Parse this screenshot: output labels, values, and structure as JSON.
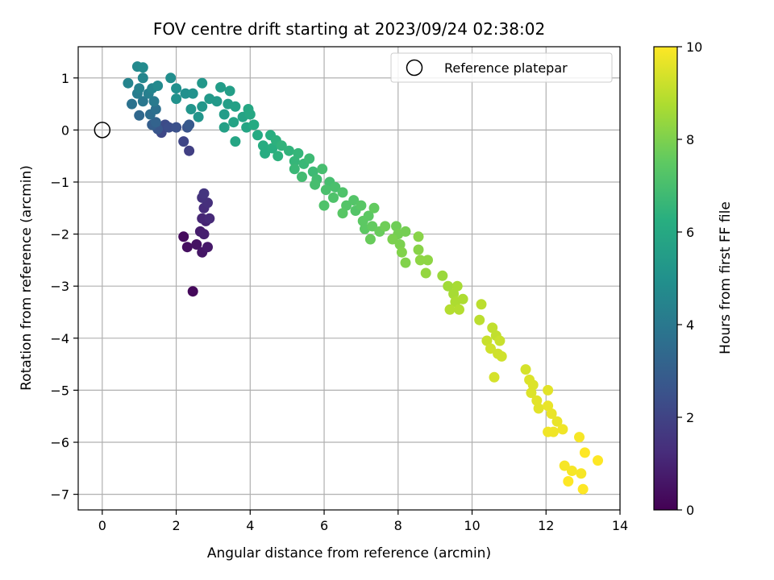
{
  "chart_data": {
    "type": "scatter",
    "title": "FOV centre drift starting at 2023/09/24 02:38:02",
    "xlabel": "Angular distance from reference (arcmin)",
    "ylabel": "Rotation from reference (arcmin)",
    "xlim": [
      -0.65,
      14.0
    ],
    "ylim": [
      -7.3,
      1.6
    ],
    "xticks": [
      0,
      2,
      4,
      6,
      8,
      10,
      12,
      14
    ],
    "yticks": [
      1,
      0,
      -1,
      -2,
      -3,
      -4,
      -5,
      -6,
      -7
    ],
    "grid": true,
    "colormap": "viridis",
    "colorbar": {
      "label": "Hours from first FF file",
      "range": [
        0,
        10
      ],
      "ticks": [
        0,
        2,
        4,
        6,
        8,
        10
      ]
    },
    "legend": {
      "placement": "top-right",
      "entries": [
        {
          "label": "Reference platepar",
          "marker": "open-circle"
        }
      ]
    },
    "reference_point": {
      "x": 0,
      "y": 0
    },
    "points": [
      {
        "x": 2.45,
        "y": -3.1,
        "h": 0.2
      },
      {
        "x": 2.2,
        "y": -2.05,
        "h": 0.3
      },
      {
        "x": 2.3,
        "y": -2.25,
        "h": 0.4
      },
      {
        "x": 2.55,
        "y": -2.2,
        "h": 0.5
      },
      {
        "x": 2.7,
        "y": -2.35,
        "h": 0.6
      },
      {
        "x": 2.85,
        "y": -2.25,
        "h": 0.7
      },
      {
        "x": 2.65,
        "y": -1.95,
        "h": 0.8
      },
      {
        "x": 2.75,
        "y": -2.0,
        "h": 0.9
      },
      {
        "x": 2.8,
        "y": -1.75,
        "h": 1.0
      },
      {
        "x": 2.7,
        "y": -1.7,
        "h": 1.1
      },
      {
        "x": 2.9,
        "y": -1.7,
        "h": 1.2
      },
      {
        "x": 2.75,
        "y": -1.5,
        "h": 1.3
      },
      {
        "x": 2.85,
        "y": -1.4,
        "h": 1.4
      },
      {
        "x": 2.7,
        "y": -1.3,
        "h": 1.5
      },
      {
        "x": 2.75,
        "y": -1.22,
        "h": 1.6
      },
      {
        "x": 2.35,
        "y": -0.4,
        "h": 1.9
      },
      {
        "x": 2.2,
        "y": -0.22,
        "h": 2.1
      },
      {
        "x": 1.6,
        "y": -0.05,
        "h": 2.2
      },
      {
        "x": 1.7,
        "y": 0.1,
        "h": 2.3
      },
      {
        "x": 1.8,
        "y": 0.05,
        "h": 2.4
      },
      {
        "x": 2.0,
        "y": 0.05,
        "h": 2.5
      },
      {
        "x": 2.3,
        "y": 0.05,
        "h": 2.6
      },
      {
        "x": 1.5,
        "y": 0.02,
        "h": 2.7
      },
      {
        "x": 2.35,
        "y": 0.1,
        "h": 2.8
      },
      {
        "x": 1.35,
        "y": 0.1,
        "h": 3.0
      },
      {
        "x": 1.45,
        "y": 0.15,
        "h": 3.2
      },
      {
        "x": 1.0,
        "y": 0.28,
        "h": 3.4
      },
      {
        "x": 1.3,
        "y": 0.3,
        "h": 3.6
      },
      {
        "x": 1.45,
        "y": 0.4,
        "h": 3.7
      },
      {
        "x": 0.8,
        "y": 0.5,
        "h": 3.8
      },
      {
        "x": 1.1,
        "y": 0.55,
        "h": 4.0
      },
      {
        "x": 1.4,
        "y": 0.55,
        "h": 4.1
      },
      {
        "x": 0.95,
        "y": 0.7,
        "h": 4.2
      },
      {
        "x": 1.25,
        "y": 0.7,
        "h": 4.3
      },
      {
        "x": 1.0,
        "y": 0.8,
        "h": 4.4
      },
      {
        "x": 0.7,
        "y": 0.9,
        "h": 4.5
      },
      {
        "x": 1.35,
        "y": 0.8,
        "h": 4.5
      },
      {
        "x": 1.1,
        "y": 1.0,
        "h": 4.6
      },
      {
        "x": 1.5,
        "y": 0.85,
        "h": 4.7
      },
      {
        "x": 0.95,
        "y": 1.22,
        "h": 4.7
      },
      {
        "x": 1.1,
        "y": 1.2,
        "h": 4.8
      },
      {
        "x": 1.85,
        "y": 1.0,
        "h": 4.9
      },
      {
        "x": 2.0,
        "y": 0.8,
        "h": 5.0
      },
      {
        "x": 2.25,
        "y": 0.7,
        "h": 5.0
      },
      {
        "x": 2.45,
        "y": 0.7,
        "h": 5.1
      },
      {
        "x": 2.0,
        "y": 0.6,
        "h": 5.1
      },
      {
        "x": 2.4,
        "y": 0.4,
        "h": 5.2
      },
      {
        "x": 2.6,
        "y": 0.25,
        "h": 5.2
      },
      {
        "x": 2.7,
        "y": 0.9,
        "h": 5.3
      },
      {
        "x": 2.7,
        "y": 0.45,
        "h": 5.3
      },
      {
        "x": 2.9,
        "y": 0.6,
        "h": 5.4
      },
      {
        "x": 3.1,
        "y": 0.55,
        "h": 5.4
      },
      {
        "x": 3.2,
        "y": 0.82,
        "h": 5.5
      },
      {
        "x": 3.3,
        "y": 0.3,
        "h": 5.5
      },
      {
        "x": 3.4,
        "y": 0.5,
        "h": 5.6
      },
      {
        "x": 3.45,
        "y": 0.75,
        "h": 5.6
      },
      {
        "x": 3.3,
        "y": 0.05,
        "h": 5.7
      },
      {
        "x": 3.6,
        "y": 0.45,
        "h": 5.7
      },
      {
        "x": 3.55,
        "y": 0.15,
        "h": 5.8
      },
      {
        "x": 3.8,
        "y": 0.25,
        "h": 5.8
      },
      {
        "x": 3.6,
        "y": -0.22,
        "h": 5.9
      },
      {
        "x": 3.9,
        "y": 0.05,
        "h": 5.9
      },
      {
        "x": 4.0,
        "y": 0.3,
        "h": 6.0
      },
      {
        "x": 3.95,
        "y": 0.4,
        "h": 6.0
      },
      {
        "x": 4.1,
        "y": 0.1,
        "h": 6.1
      },
      {
        "x": 4.2,
        "y": -0.1,
        "h": 6.1
      },
      {
        "x": 4.35,
        "y": -0.3,
        "h": 6.2
      },
      {
        "x": 4.4,
        "y": -0.45,
        "h": 6.2
      },
      {
        "x": 4.55,
        "y": -0.1,
        "h": 6.3
      },
      {
        "x": 4.6,
        "y": -0.35,
        "h": 6.3
      },
      {
        "x": 4.7,
        "y": -0.2,
        "h": 6.4
      },
      {
        "x": 4.75,
        "y": -0.5,
        "h": 6.4
      },
      {
        "x": 4.85,
        "y": -0.3,
        "h": 6.5
      },
      {
        "x": 5.05,
        "y": -0.4,
        "h": 6.5
      },
      {
        "x": 5.2,
        "y": -0.6,
        "h": 6.6
      },
      {
        "x": 5.3,
        "y": -0.45,
        "h": 6.6
      },
      {
        "x": 5.45,
        "y": -0.65,
        "h": 6.7
      },
      {
        "x": 5.2,
        "y": -0.75,
        "h": 6.7
      },
      {
        "x": 5.6,
        "y": -0.55,
        "h": 6.8
      },
      {
        "x": 5.7,
        "y": -0.8,
        "h": 6.8
      },
      {
        "x": 5.4,
        "y": -0.9,
        "h": 6.9
      },
      {
        "x": 5.8,
        "y": -0.95,
        "h": 6.9
      },
      {
        "x": 5.75,
        "y": -1.05,
        "h": 7.0
      },
      {
        "x": 5.95,
        "y": -0.75,
        "h": 7.0
      },
      {
        "x": 6.15,
        "y": -1.0,
        "h": 7.0
      },
      {
        "x": 6.05,
        "y": -1.15,
        "h": 7.1
      },
      {
        "x": 6.3,
        "y": -1.1,
        "h": 7.1
      },
      {
        "x": 6.5,
        "y": -1.2,
        "h": 7.2
      },
      {
        "x": 6.25,
        "y": -1.3,
        "h": 7.2
      },
      {
        "x": 6.0,
        "y": -1.45,
        "h": 7.2
      },
      {
        "x": 6.6,
        "y": -1.45,
        "h": 7.3
      },
      {
        "x": 6.8,
        "y": -1.35,
        "h": 7.3
      },
      {
        "x": 6.85,
        "y": -1.55,
        "h": 7.3
      },
      {
        "x": 6.5,
        "y": -1.6,
        "h": 7.4
      },
      {
        "x": 7.0,
        "y": -1.45,
        "h": 7.4
      },
      {
        "x": 7.05,
        "y": -1.75,
        "h": 7.5
      },
      {
        "x": 7.2,
        "y": -1.65,
        "h": 7.5
      },
      {
        "x": 7.1,
        "y": -1.9,
        "h": 7.5
      },
      {
        "x": 7.35,
        "y": -1.5,
        "h": 7.6
      },
      {
        "x": 7.3,
        "y": -1.85,
        "h": 7.6
      },
      {
        "x": 7.25,
        "y": -2.1,
        "h": 7.7
      },
      {
        "x": 7.5,
        "y": -1.95,
        "h": 7.7
      },
      {
        "x": 7.65,
        "y": -1.85,
        "h": 7.8
      },
      {
        "x": 7.95,
        "y": -1.85,
        "h": 7.8
      },
      {
        "x": 8.0,
        "y": -2.0,
        "h": 7.9
      },
      {
        "x": 8.2,
        "y": -1.95,
        "h": 7.9
      },
      {
        "x": 7.85,
        "y": -2.1,
        "h": 8.0
      },
      {
        "x": 8.05,
        "y": -2.2,
        "h": 8.0
      },
      {
        "x": 8.1,
        "y": -2.35,
        "h": 8.1
      },
      {
        "x": 8.2,
        "y": -2.55,
        "h": 8.1
      },
      {
        "x": 8.55,
        "y": -2.05,
        "h": 8.2
      },
      {
        "x": 8.55,
        "y": -2.3,
        "h": 8.2
      },
      {
        "x": 8.6,
        "y": -2.5,
        "h": 8.3
      },
      {
        "x": 8.8,
        "y": -2.5,
        "h": 8.3
      },
      {
        "x": 8.75,
        "y": -2.75,
        "h": 8.4
      },
      {
        "x": 9.2,
        "y": -2.8,
        "h": 8.5
      },
      {
        "x": 9.35,
        "y": -3.0,
        "h": 8.6
      },
      {
        "x": 9.5,
        "y": -3.15,
        "h": 8.7
      },
      {
        "x": 9.6,
        "y": -3.0,
        "h": 8.7
      },
      {
        "x": 9.55,
        "y": -3.3,
        "h": 8.8
      },
      {
        "x": 9.75,
        "y": -3.25,
        "h": 8.8
      },
      {
        "x": 9.4,
        "y": -3.45,
        "h": 8.9
      },
      {
        "x": 9.65,
        "y": -3.45,
        "h": 8.9
      },
      {
        "x": 10.25,
        "y": -3.35,
        "h": 9.0
      },
      {
        "x": 10.2,
        "y": -3.65,
        "h": 9.0
      },
      {
        "x": 10.55,
        "y": -3.8,
        "h": 9.1
      },
      {
        "x": 10.65,
        "y": -3.95,
        "h": 9.1
      },
      {
        "x": 10.4,
        "y": -4.05,
        "h": 9.2
      },
      {
        "x": 10.75,
        "y": -4.05,
        "h": 9.2
      },
      {
        "x": 10.7,
        "y": -4.3,
        "h": 9.3
      },
      {
        "x": 10.5,
        "y": -4.2,
        "h": 9.3
      },
      {
        "x": 10.8,
        "y": -4.35,
        "h": 9.3
      },
      {
        "x": 10.6,
        "y": -4.75,
        "h": 9.4
      },
      {
        "x": 11.45,
        "y": -4.6,
        "h": 9.4
      },
      {
        "x": 11.55,
        "y": -4.8,
        "h": 9.5
      },
      {
        "x": 11.65,
        "y": -4.9,
        "h": 9.5
      },
      {
        "x": 11.6,
        "y": -5.05,
        "h": 9.5
      },
      {
        "x": 11.75,
        "y": -5.2,
        "h": 9.6
      },
      {
        "x": 11.8,
        "y": -5.35,
        "h": 9.6
      },
      {
        "x": 12.05,
        "y": -5.0,
        "h": 9.6
      },
      {
        "x": 12.05,
        "y": -5.3,
        "h": 9.7
      },
      {
        "x": 12.15,
        "y": -5.45,
        "h": 9.7
      },
      {
        "x": 12.3,
        "y": -5.6,
        "h": 9.7
      },
      {
        "x": 12.2,
        "y": -5.8,
        "h": 9.8
      },
      {
        "x": 12.45,
        "y": -5.75,
        "h": 9.8
      },
      {
        "x": 12.05,
        "y": -5.8,
        "h": 9.8
      },
      {
        "x": 12.9,
        "y": -5.9,
        "h": 9.9
      },
      {
        "x": 12.5,
        "y": -6.45,
        "h": 9.9
      },
      {
        "x": 12.7,
        "y": -6.55,
        "h": 9.9
      },
      {
        "x": 12.95,
        "y": -6.6,
        "h": 9.9
      },
      {
        "x": 12.6,
        "y": -6.75,
        "h": 10.0
      },
      {
        "x": 13.05,
        "y": -6.2,
        "h": 10.0
      },
      {
        "x": 13.4,
        "y": -6.35,
        "h": 10.0
      },
      {
        "x": 13.0,
        "y": -6.9,
        "h": 10.0
      }
    ]
  }
}
